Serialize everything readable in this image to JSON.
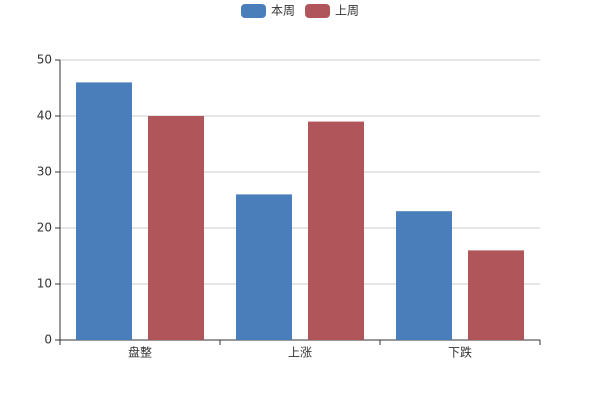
{
  "chart_data": {
    "type": "bar",
    "categories": [
      "盘整",
      "上涨",
      "下跌"
    ],
    "series": [
      {
        "name": "本周",
        "color": "#4a7ebb",
        "values": [
          46,
          26,
          23
        ]
      },
      {
        "name": "上周",
        "color": "#b0555a",
        "values": [
          40,
          39,
          16
        ]
      }
    ],
    "ylim": [
      0,
      50
    ],
    "yticks": [
      0,
      10,
      20,
      30,
      40,
      50
    ],
    "grid": true,
    "legend": "top"
  }
}
